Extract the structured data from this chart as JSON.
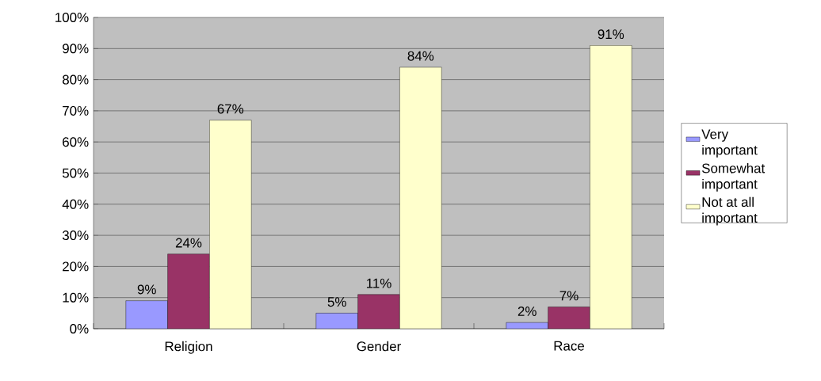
{
  "chart_data": {
    "type": "bar",
    "categories": [
      "Religion",
      "Gender",
      "Race"
    ],
    "series": [
      {
        "name": "Very important",
        "color": "#9999ff",
        "values": [
          9,
          5,
          2
        ],
        "value_labels": [
          "9%",
          "5%",
          "2%"
        ]
      },
      {
        "name": "Somewhat important",
        "color": "#993366",
        "values": [
          24,
          11,
          7
        ],
        "value_labels": [
          "24%",
          "11%",
          "7%"
        ]
      },
      {
        "name": "Not at all important",
        "color": "#ffffcc",
        "values": [
          67,
          84,
          91
        ],
        "value_labels": [
          "67%",
          "84%",
          "91%"
        ]
      }
    ],
    "ylim": [
      0,
      100
    ],
    "yticks": [
      {
        "value": 0,
        "label": "0%"
      },
      {
        "value": 10,
        "label": "10%"
      },
      {
        "value": 20,
        "label": "20%"
      },
      {
        "value": 30,
        "label": "30%"
      },
      {
        "value": 40,
        "label": "40%"
      },
      {
        "value": 50,
        "label": "50%"
      },
      {
        "value": 60,
        "label": "60%"
      },
      {
        "value": 70,
        "label": "70%"
      },
      {
        "value": 80,
        "label": "80%"
      },
      {
        "value": 90,
        "label": "90%"
      },
      {
        "value": 100,
        "label": "100%"
      }
    ],
    "grid": "y",
    "legend": "right"
  }
}
